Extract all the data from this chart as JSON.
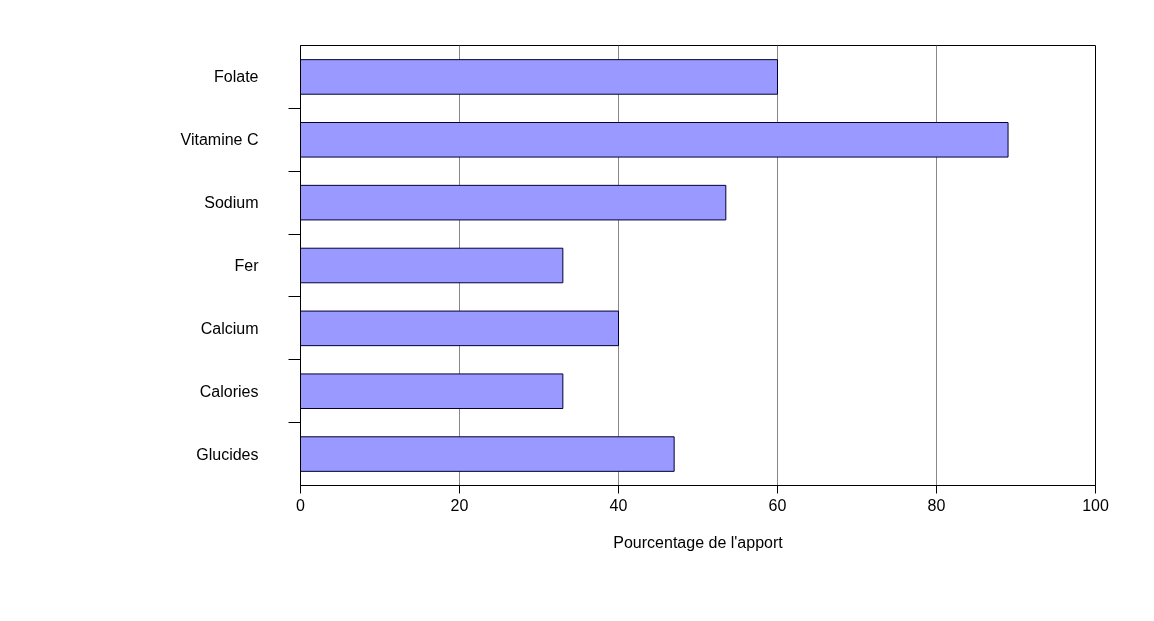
{
  "chart_data": {
    "type": "bar",
    "orientation": "horizontal",
    "xlabel": "Pourcentage de l'apport",
    "categories": [
      "Folate",
      "Vitamine C",
      "Sodium",
      "Fer",
      "Calcium",
      "Calories",
      "Glucides"
    ],
    "values": [
      60,
      89,
      53.5,
      33,
      40,
      33,
      47
    ],
    "color": "#9999ff",
    "xlim": [
      0,
      100
    ],
    "xticks": [
      0,
      20,
      40,
      60,
      80,
      100
    ],
    "grid": "x"
  }
}
